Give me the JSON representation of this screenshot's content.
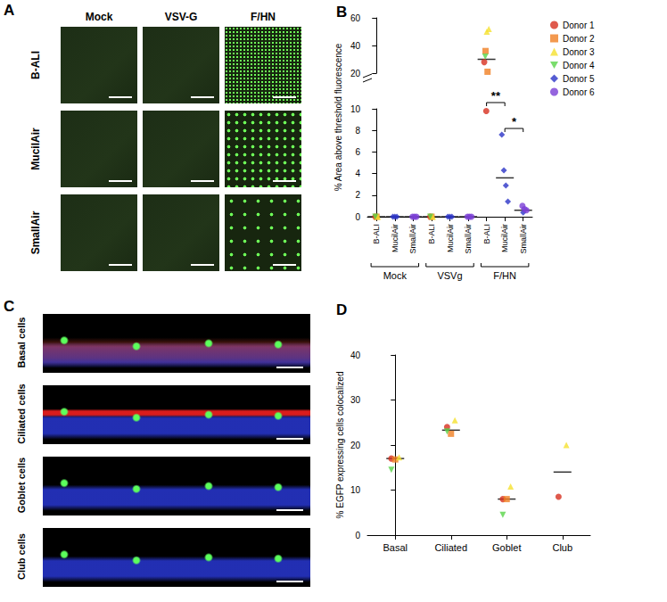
{
  "figure": {
    "A": {
      "label": "A",
      "columns": [
        "Mock",
        "VSV-G",
        "F/HN"
      ],
      "rows": [
        "B-ALI",
        "MucilAir",
        "SmallAir"
      ]
    },
    "C": {
      "label": "C",
      "rows": [
        "Basal cells",
        "Ciliated cells",
        "Goblet cells",
        "Club cells"
      ]
    }
  },
  "chart_data": [
    {
      "type": "scatter",
      "title": "B",
      "y_label": "% Area above threshold fluorescence",
      "categories": [
        "B-ALI",
        "MucilAir",
        "SmallAir",
        "B-ALI",
        "MucilAir",
        "SmallAir",
        "B-ALI",
        "MucilAir",
        "SmallAir"
      ],
      "groups": [
        "Mock",
        "VSVg",
        "F/HN"
      ],
      "ylim": [
        0,
        60
      ],
      "yticks": [
        0,
        2,
        4,
        6,
        8,
        10,
        20,
        40,
        60
      ],
      "y_break": [
        10,
        20
      ],
      "grid": false,
      "legend": "right",
      "series": [
        {
          "name": "Donor 1",
          "color": "#d7301f",
          "marker": "circle",
          "values": [
            [
              0
            ],
            [],
            [],
            [
              0
            ],
            [],
            [],
            [
              28,
              9.8
            ],
            [],
            []
          ]
        },
        {
          "name": "Donor 2",
          "color": "#f07f23",
          "marker": "square",
          "values": [
            [
              0
            ],
            [],
            [],
            [
              0
            ],
            [],
            [],
            [
              36,
              21
            ],
            [],
            []
          ]
        },
        {
          "name": "Donor 3",
          "color": "#f5e12e",
          "marker": "triangle",
          "values": [
            [
              0
            ],
            [],
            [],
            [
              0
            ],
            [],
            [],
            [
              50,
              52
            ],
            [],
            []
          ]
        },
        {
          "name": "Donor 4",
          "color": "#59d449",
          "marker": "triangle_down",
          "values": [
            [
              0
            ],
            [],
            [],
            [
              0
            ],
            [],
            [],
            [
              32
            ],
            [],
            []
          ]
        },
        {
          "name": "Donor 5",
          "color": "#2b33c7",
          "marker": "diamond",
          "values": [
            [],
            [
              0,
              0,
              0
            ],
            [],
            [],
            [
              0,
              0,
              0
            ],
            [],
            [],
            [
              7.6,
              4.3,
              2.9,
              1.4
            ],
            [
              0.4
            ]
          ]
        },
        {
          "name": "Donor 6",
          "color": "#7a3fd6",
          "marker": "circle",
          "values": [
            [],
            [],
            [
              0,
              0,
              0
            ],
            [],
            [],
            [
              0,
              0,
              0
            ],
            [],
            [],
            [
              1.0,
              0.7,
              0.6
            ]
          ]
        }
      ],
      "means": [
        0,
        0,
        0,
        0,
        0,
        0,
        30,
        3.6,
        0.6
      ],
      "annotations": [
        {
          "text": "**",
          "between": [
            6,
            7
          ]
        },
        {
          "text": "*",
          "between": [
            7,
            8
          ]
        }
      ]
    },
    {
      "type": "scatter",
      "title": "D",
      "y_label": "% EGFP expressing cells colocalized",
      "categories": [
        "Basal",
        "Ciliated",
        "Goblet",
        "Club"
      ],
      "ylim": [
        0,
        40
      ],
      "yticks": [
        0,
        10,
        20,
        30,
        40
      ],
      "grid": false,
      "series": [
        {
          "name": "Donor 1",
          "color": "#d7301f",
          "marker": "circle",
          "values": [
            [
              17
            ],
            [
              24
            ],
            [
              8
            ],
            [
              8.5
            ]
          ]
        },
        {
          "name": "Donor 2",
          "color": "#f07f23",
          "marker": "square",
          "values": [
            [
              16.8
            ],
            [
              22.5
            ],
            [
              8
            ],
            []
          ]
        },
        {
          "name": "Donor 3",
          "color": "#f5e12e",
          "marker": "triangle",
          "values": [
            [
              17.3
            ],
            [
              25.5
            ],
            [
              10.8
            ],
            [
              20
            ]
          ]
        },
        {
          "name": "Donor 4",
          "color": "#59d449",
          "marker": "triangle_down",
          "values": [
            [
              14.5
            ],
            [
              23
            ],
            [
              4.5
            ],
            []
          ]
        }
      ],
      "means": [
        17,
        23.3,
        8,
        14
      ]
    }
  ]
}
